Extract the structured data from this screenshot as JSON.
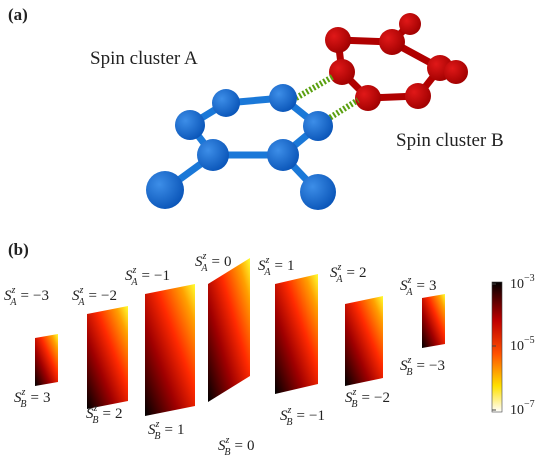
{
  "panel_a": {
    "label": "(a)",
    "cluster_a": "Spin cluster A",
    "cluster_b": "Spin cluster B"
  },
  "panel_b": {
    "label": "(b)",
    "blocks": [
      {
        "top": {
          "symbol": "S",
          "sup": "z",
          "sub": "A",
          "relation": "=",
          "value": "−3"
        },
        "bottom": {
          "symbol": "S",
          "sup": "z",
          "sub": "B",
          "relation": "=",
          "value": "3"
        }
      },
      {
        "top": {
          "symbol": "S",
          "sup": "z",
          "sub": "A",
          "relation": "=",
          "value": "−2"
        },
        "bottom": {
          "symbol": "S",
          "sup": "z",
          "sub": "B",
          "relation": "=",
          "value": "2"
        }
      },
      {
        "top": {
          "symbol": "S",
          "sup": "z",
          "sub": "A",
          "relation": "=",
          "value": "−1"
        },
        "bottom": {
          "symbol": "S",
          "sup": "z",
          "sub": "B",
          "relation": "=",
          "value": "1"
        }
      },
      {
        "top": {
          "symbol": "S",
          "sup": "z",
          "sub": "A",
          "relation": "=",
          "value": "0"
        },
        "bottom": {
          "symbol": "S",
          "sup": "z",
          "sub": "B",
          "relation": "=",
          "value": "0"
        }
      },
      {
        "top": {
          "symbol": "S",
          "sup": "z",
          "sub": "A",
          "relation": "=",
          "value": "1"
        },
        "bottom": {
          "symbol": "S",
          "sup": "z",
          "sub": "B",
          "relation": "=",
          "value": "−1"
        }
      },
      {
        "top": {
          "symbol": "S",
          "sup": "z",
          "sub": "A",
          "relation": "=",
          "value": "2"
        },
        "bottom": {
          "symbol": "S",
          "sup": "z",
          "sub": "B",
          "relation": "=",
          "value": "−2"
        }
      },
      {
        "top": {
          "symbol": "S",
          "sup": "z",
          "sub": "A",
          "relation": "=",
          "value": "3"
        },
        "bottom": {
          "symbol": "S",
          "sup": "z",
          "sub": "B",
          "relation": "=",
          "value": "−3"
        }
      }
    ],
    "colorbar_ticks": [
      {
        "base": "10",
        "exponent": "−3"
      },
      {
        "base": "10",
        "exponent": "−5"
      },
      {
        "base": "10",
        "exponent": "−7"
      }
    ]
  }
}
